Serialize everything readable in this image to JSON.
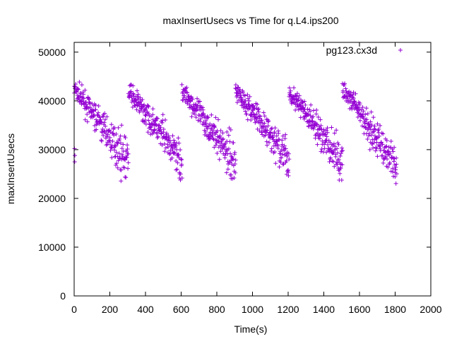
{
  "chart_data": {
    "type": "scatter",
    "title": "maxInsertUsecs vs Time for q.L4.ips200",
    "xlabel": "Time(s)",
    "ylabel": "maxInsertUsecs",
    "xlim": [
      0,
      2000
    ],
    "ylim": [
      0,
      52000
    ],
    "x_ticks": [
      0,
      200,
      400,
      600,
      800,
      1000,
      1200,
      1400,
      1600,
      1800,
      2000
    ],
    "y_ticks": [
      0,
      10000,
      20000,
      30000,
      40000,
      50000
    ],
    "x_tick_labels": [
      "0",
      "200",
      "400",
      "600",
      "800",
      "1000",
      "1200",
      "1400",
      "1600",
      "1800",
      "2000"
    ],
    "y_tick_labels": [
      "0",
      "10000",
      "20000",
      "30000",
      "40000",
      "50000"
    ],
    "grid": false,
    "legend_position": "top-right",
    "marker": "+",
    "series": [
      {
        "name": "pg123.cx3d",
        "color": "#9400d3",
        "segments": [
          {
            "x_start": 0,
            "x_end": 305,
            "y_start": 42500,
            "y_end": 27500,
            "spread": 1800
          },
          {
            "x_start": 305,
            "x_end": 605,
            "y_start": 42000,
            "y_end": 27500,
            "spread": 1800
          },
          {
            "x_start": 605,
            "x_end": 905,
            "y_start": 42000,
            "y_end": 27500,
            "spread": 1800
          },
          {
            "x_start": 905,
            "x_end": 1205,
            "y_start": 42500,
            "y_end": 27500,
            "spread": 1800
          },
          {
            "x_start": 1205,
            "x_end": 1505,
            "y_start": 42000,
            "y_end": 27000,
            "spread": 1800
          },
          {
            "x_start": 1505,
            "x_end": 1810,
            "y_start": 42500,
            "y_end": 26500,
            "spread": 1800
          }
        ],
        "outliers": [
          {
            "x": 2,
            "y": 30200
          },
          {
            "x": 4,
            "y": 28800
          },
          {
            "x": 3,
            "y": 27500
          },
          {
            "x": 290,
            "y": 24300
          },
          {
            "x": 880,
            "y": 24800
          },
          {
            "x": 1490,
            "y": 25100
          },
          {
            "x": 1800,
            "y": 25300
          },
          {
            "x": 1200,
            "y": 25800
          }
        ]
      }
    ]
  }
}
